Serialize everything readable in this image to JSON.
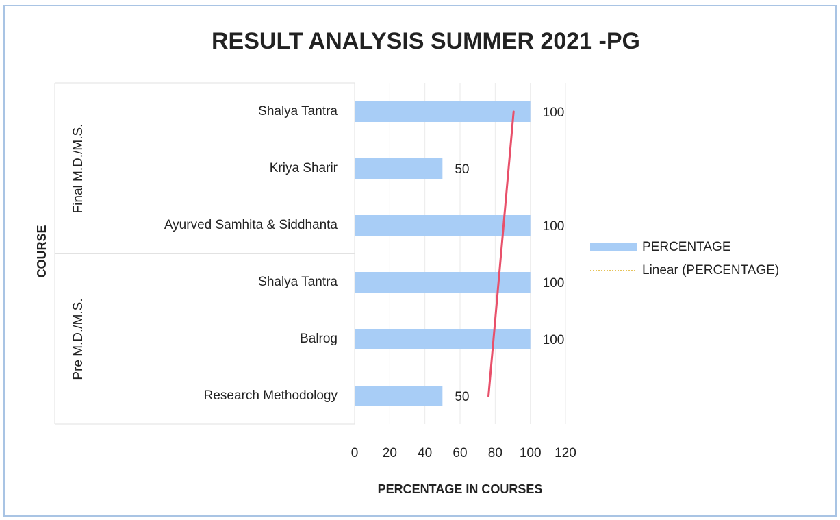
{
  "chart_data": {
    "type": "bar",
    "orientation": "horizontal",
    "title": "RESULT ANALYSIS SUMMER 2021 -PG",
    "x_label": "PERCENTAGE IN COURSES",
    "y_label": "COURSE",
    "series": [
      {
        "name": "PERCENTAGE",
        "color": "#a8cdf6"
      }
    ],
    "groups": [
      {
        "name": "Final M.D./M.S.",
        "categories": [
          "Shalya Tantra",
          "Kriya Sharir",
          "Ayurved Samhita & Siddhanta"
        ],
        "values": [
          100,
          50,
          100
        ]
      },
      {
        "name": "Pre M.D./M.S.",
        "categories": [
          "Shalya Tantra",
          "Balrog",
          "Research Methodology"
        ],
        "values": [
          100,
          100,
          50
        ]
      }
    ],
    "trendline": {
      "name": "Linear (PERCENTAGE)",
      "color": "#e8506a",
      "legend_color": "#e6c35a"
    },
    "xlim": [
      0,
      120
    ],
    "xticks": [
      0,
      20,
      40,
      60,
      80,
      100,
      120
    ],
    "grid": true,
    "legend": "right"
  }
}
